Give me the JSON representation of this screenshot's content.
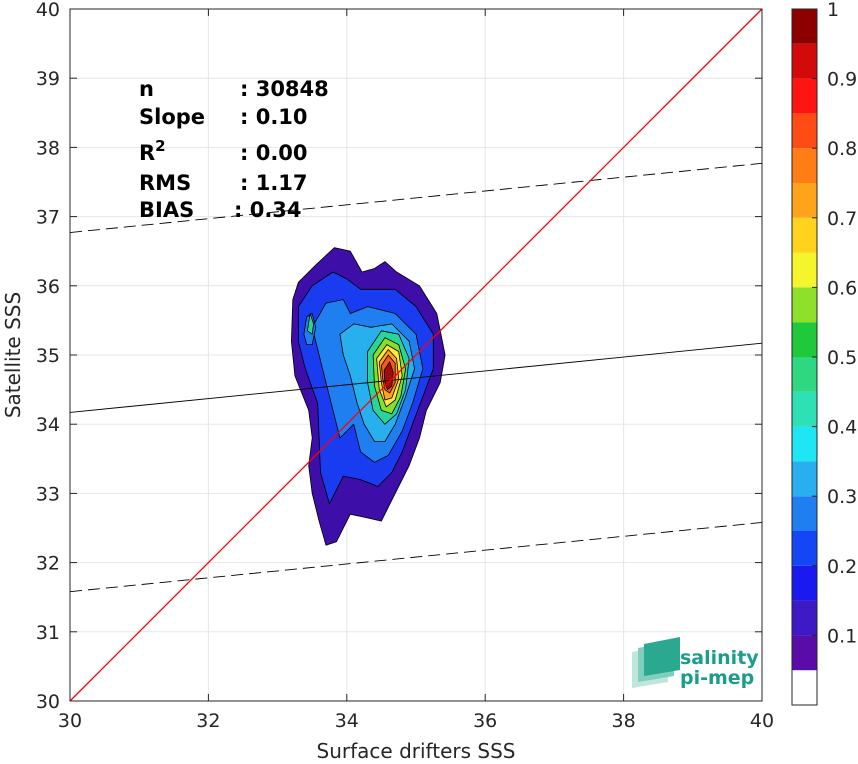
{
  "chart_data": {
    "type": "heatmap",
    "title": "",
    "xlabel": "Surface drifters SSS",
    "ylabel": "Satellite SSS",
    "xlim": [
      30,
      40
    ],
    "ylim": [
      30,
      40
    ],
    "xticks": [
      "30",
      "32",
      "34",
      "36",
      "38",
      "40"
    ],
    "yticks": [
      "30",
      "31",
      "32",
      "33",
      "34",
      "35",
      "36",
      "37",
      "38",
      "39",
      "40"
    ],
    "grid": true,
    "stats": [
      {
        "label": "n",
        "value": ": 30848"
      },
      {
        "label": "Slope",
        "value": ": 0.10"
      },
      {
        "label": "R",
        "sup": "2",
        "value": ": 0.00"
      },
      {
        "label": "RMS",
        "value": ": 1.17"
      },
      {
        "label": "BIAS",
        "value": ": 0.34"
      }
    ],
    "lines": {
      "identity": {
        "x": [
          30,
          40
        ],
        "y": [
          30,
          40
        ],
        "color": "#ff0000"
      },
      "regression": {
        "x": [
          30,
          40
        ],
        "y": [
          34.17,
          35.17
        ],
        "color": "#000000"
      },
      "upper_bound": {
        "x": [
          30,
          40
        ],
        "y": [
          36.77,
          37.77
        ],
        "color": "#000000",
        "dashed": true
      },
      "lower_bound": {
        "x": [
          30,
          40
        ],
        "y": [
          31.58,
          32.58
        ],
        "color": "#000000",
        "dashed": true
      }
    },
    "density_contours": [
      {
        "level": 0.05,
        "color": "#3d0fa8",
        "points": [
          [
            33.22,
            35.8
          ],
          [
            33.3,
            36.05
          ],
          [
            33.55,
            36.3
          ],
          [
            33.82,
            36.55
          ],
          [
            34.05,
            36.5
          ],
          [
            34.22,
            36.2
          ],
          [
            34.4,
            36.25
          ],
          [
            34.55,
            36.35
          ],
          [
            34.72,
            36.2
          ],
          [
            35.05,
            36.0
          ],
          [
            35.3,
            35.6
          ],
          [
            35.42,
            35.0
          ],
          [
            35.35,
            34.6
          ],
          [
            35.15,
            34.2
          ],
          [
            35.05,
            33.8
          ],
          [
            34.9,
            33.4
          ],
          [
            34.7,
            33.0
          ],
          [
            34.6,
            32.8
          ],
          [
            34.5,
            32.6
          ],
          [
            34.28,
            32.65
          ],
          [
            34.05,
            32.7
          ],
          [
            33.85,
            32.3
          ],
          [
            33.7,
            32.25
          ],
          [
            33.6,
            32.6
          ],
          [
            33.5,
            33.0
          ],
          [
            33.45,
            33.4
          ],
          [
            33.5,
            33.8
          ],
          [
            33.45,
            34.2
          ],
          [
            33.25,
            34.7
          ],
          [
            33.2,
            35.2
          ]
        ]
      },
      {
        "level": 0.15,
        "color": "#1a3cf0",
        "points": [
          [
            33.3,
            35.7
          ],
          [
            33.5,
            36.0
          ],
          [
            33.8,
            36.2
          ],
          [
            34.0,
            36.1
          ],
          [
            34.2,
            35.95
          ],
          [
            34.45,
            35.95
          ],
          [
            34.7,
            35.95
          ],
          [
            35.0,
            35.7
          ],
          [
            35.25,
            35.3
          ],
          [
            35.25,
            34.8
          ],
          [
            35.1,
            34.4
          ],
          [
            34.95,
            34.0
          ],
          [
            34.8,
            33.6
          ],
          [
            34.65,
            33.3
          ],
          [
            34.45,
            33.1
          ],
          [
            34.2,
            33.2
          ],
          [
            33.95,
            33.25
          ],
          [
            33.75,
            32.85
          ],
          [
            33.62,
            33.3
          ],
          [
            33.6,
            33.8
          ],
          [
            33.58,
            34.3
          ],
          [
            33.4,
            34.8
          ],
          [
            33.3,
            35.2
          ]
        ]
      },
      {
        "level": 0.25,
        "color": "#1f7ff0",
        "points": [
          [
            33.5,
            35.4
          ],
          [
            33.7,
            35.75
          ],
          [
            33.95,
            35.8
          ],
          [
            34.05,
            35.6
          ],
          [
            34.3,
            35.7
          ],
          [
            34.7,
            35.6
          ],
          [
            35.0,
            35.3
          ],
          [
            35.1,
            34.8
          ],
          [
            34.95,
            34.3
          ],
          [
            34.8,
            33.9
          ],
          [
            34.6,
            33.55
          ],
          [
            34.4,
            33.45
          ],
          [
            34.2,
            33.6
          ],
          [
            34.1,
            34.0
          ],
          [
            33.9,
            33.8
          ],
          [
            33.8,
            34.2
          ],
          [
            33.7,
            34.6
          ],
          [
            33.6,
            35.0
          ]
        ]
      },
      {
        "level": 0.3,
        "color": "#28b0ee",
        "points": [
          [
            33.9,
            35.3
          ],
          [
            34.1,
            35.45
          ],
          [
            34.35,
            35.4
          ],
          [
            34.65,
            35.45
          ],
          [
            34.9,
            35.2
          ],
          [
            34.98,
            34.8
          ],
          [
            34.85,
            34.4
          ],
          [
            34.7,
            34.0
          ],
          [
            34.55,
            33.75
          ],
          [
            34.4,
            33.75
          ],
          [
            34.25,
            34.0
          ],
          [
            34.15,
            34.3
          ],
          [
            34.05,
            34.7
          ],
          [
            33.95,
            35.0
          ]
        ]
      },
      {
        "level": 0.45,
        "color": "#29d49a",
        "points": [
          [
            34.3,
            35.05
          ],
          [
            34.5,
            35.35
          ],
          [
            34.75,
            35.3
          ],
          [
            34.9,
            34.95
          ],
          [
            34.85,
            34.5
          ],
          [
            34.72,
            34.15
          ],
          [
            34.55,
            34.0
          ],
          [
            34.38,
            34.2
          ],
          [
            34.3,
            34.6
          ]
        ]
      },
      {
        "level": 0.55,
        "color": "#85e02b",
        "points": [
          [
            34.38,
            35.0
          ],
          [
            34.55,
            35.25
          ],
          [
            34.75,
            35.15
          ],
          [
            34.85,
            34.8
          ],
          [
            34.78,
            34.4
          ],
          [
            34.65,
            34.15
          ],
          [
            34.5,
            34.2
          ],
          [
            34.4,
            34.55
          ]
        ]
      },
      {
        "level": 0.65,
        "color": "#ffe53d",
        "points": [
          [
            34.43,
            34.95
          ],
          [
            34.58,
            35.15
          ],
          [
            34.75,
            35.05
          ],
          [
            34.8,
            34.7
          ],
          [
            34.7,
            34.35
          ],
          [
            34.57,
            34.25
          ],
          [
            34.47,
            34.5
          ]
        ]
      },
      {
        "level": 0.75,
        "color": "#ffa31a",
        "points": [
          [
            34.47,
            34.9
          ],
          [
            34.6,
            35.08
          ],
          [
            34.72,
            34.95
          ],
          [
            34.75,
            34.65
          ],
          [
            34.65,
            34.38
          ],
          [
            34.55,
            34.35
          ],
          [
            34.5,
            34.6
          ]
        ]
      },
      {
        "level": 0.85,
        "color": "#f55a1e",
        "points": [
          [
            34.5,
            34.85
          ],
          [
            34.6,
            35.0
          ],
          [
            34.7,
            34.88
          ],
          [
            34.7,
            34.6
          ],
          [
            34.62,
            34.45
          ],
          [
            34.55,
            34.5
          ],
          [
            34.52,
            34.65
          ]
        ]
      },
      {
        "level": 0.95,
        "color": "#a10d0d",
        "points": [
          [
            34.54,
            34.78
          ],
          [
            34.62,
            34.9
          ],
          [
            34.67,
            34.75
          ],
          [
            34.65,
            34.55
          ],
          [
            34.59,
            34.5
          ],
          [
            34.55,
            34.6
          ]
        ]
      },
      {
        "level": 0.25,
        "color": "#1f7ff0",
        "points": [
          [
            33.38,
            35.3
          ],
          [
            33.42,
            35.55
          ],
          [
            33.5,
            35.6
          ],
          [
            33.55,
            35.4
          ],
          [
            33.5,
            35.15
          ],
          [
            33.42,
            35.15
          ]
        ]
      },
      {
        "level": 0.45,
        "color": "#29d49a",
        "points": [
          [
            33.43,
            35.35
          ],
          [
            33.47,
            35.6
          ],
          [
            33.52,
            35.45
          ],
          [
            33.5,
            35.3
          ]
        ]
      }
    ],
    "colorbar": {
      "range": [
        0,
        1
      ],
      "ticks": [
        "0.1",
        "0.2",
        "0.3",
        "0.4",
        "0.5",
        "0.6",
        "0.7",
        "0.8",
        "0.9",
        "1"
      ],
      "bins": [
        {
          "from": 0.0,
          "to": 0.05,
          "color": "#ffffff"
        },
        {
          "from": 0.05,
          "to": 0.1,
          "color": "#5a0ca8"
        },
        {
          "from": 0.1,
          "to": 0.15,
          "color": "#3d1ac6"
        },
        {
          "from": 0.15,
          "to": 0.2,
          "color": "#1a1af0"
        },
        {
          "from": 0.2,
          "to": 0.25,
          "color": "#1446f5"
        },
        {
          "from": 0.25,
          "to": 0.3,
          "color": "#1f7ff0"
        },
        {
          "from": 0.3,
          "to": 0.35,
          "color": "#29aef0"
        },
        {
          "from": 0.35,
          "to": 0.4,
          "color": "#1ee6f5"
        },
        {
          "from": 0.4,
          "to": 0.45,
          "color": "#2ee0b4"
        },
        {
          "from": 0.45,
          "to": 0.5,
          "color": "#2ed780"
        },
        {
          "from": 0.5,
          "to": 0.55,
          "color": "#20c83c"
        },
        {
          "from": 0.55,
          "to": 0.6,
          "color": "#8ee02b"
        },
        {
          "from": 0.6,
          "to": 0.65,
          "color": "#f5f52b"
        },
        {
          "from": 0.65,
          "to": 0.7,
          "color": "#ffd21e"
        },
        {
          "from": 0.7,
          "to": 0.75,
          "color": "#ffa31a"
        },
        {
          "from": 0.75,
          "to": 0.8,
          "color": "#ff7d14"
        },
        {
          "from": 0.8,
          "to": 0.85,
          "color": "#ff4b14"
        },
        {
          "from": 0.85,
          "to": 0.9,
          "color": "#ff1414"
        },
        {
          "from": 0.9,
          "to": 0.95,
          "color": "#d20a0a"
        },
        {
          "from": 0.95,
          "to": 1.0,
          "color": "#8c0000"
        }
      ]
    }
  },
  "logo": {
    "line1": "salinity",
    "line2": "pi-mep"
  }
}
